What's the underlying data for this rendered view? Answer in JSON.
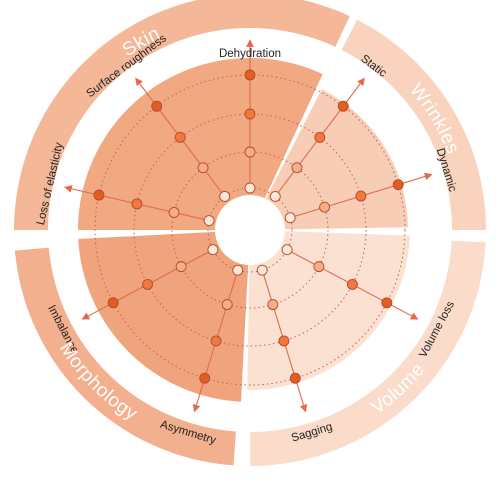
{
  "groups": [
    {
      "label": "Skin",
      "sector_fill": "#f1a982",
      "ring_fill": "#f4b899"
    },
    {
      "label": "Wrinkles",
      "sector_fill": "#f8cdb5",
      "ring_fill": "#f9d3be"
    },
    {
      "label": "Volume",
      "sector_fill": "#fbe1d2",
      "ring_fill": "#fbdccb"
    },
    {
      "label": "Morphology",
      "sector_fill": "#efa47d",
      "ring_fill": "#f2b08e"
    }
  ],
  "axes": [
    {
      "label": "Dehydration",
      "group": "Skin",
      "level": 4
    },
    {
      "label": "Static",
      "group": "Wrinkles",
      "level": 4
    },
    {
      "label": "Dynamic",
      "group": "Wrinkles",
      "level": 4
    },
    {
      "label": "Volume loss",
      "group": "Volume",
      "level": 4
    },
    {
      "label": "Sagging",
      "group": "Volume",
      "level": 4
    },
    {
      "label": "Asymmetry",
      "group": "Morphology",
      "level": 4
    },
    {
      "label": "Imbalance",
      "group": "Morphology",
      "level": 4
    },
    {
      "label": "Loss of elasticity",
      "group": "Skin",
      "level": 4
    },
    {
      "label": "Surface roughness",
      "group": "Skin",
      "level": 4
    }
  ],
  "levels": 4,
  "colors": {
    "axis_line": "#e2694a",
    "grid_ring": "#c8604a",
    "dot_level_1": "#fde6da",
    "dot_level_2": "#f6ad8a",
    "dot_level_3": "#f0783f",
    "dot_level_4": "#e35d20",
    "dot_stroke": "#b24a2a",
    "center": "#ffffff"
  }
}
